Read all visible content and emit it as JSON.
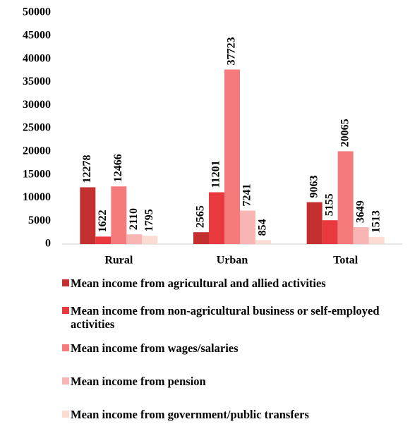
{
  "chart_data": {
    "type": "bar",
    "categories": [
      "Rural",
      "Urban",
      "Total"
    ],
    "series": [
      {
        "name": "Mean income from agricultural and allied activities",
        "color": "#c3302f",
        "values": [
          12278,
          2565,
          9063
        ]
      },
      {
        "name": "Mean income from non-agricultural business or self-employed activities",
        "color": "#e8393f",
        "values": [
          1622,
          11201,
          5155
        ]
      },
      {
        "name": "Mean income from wages/salaries",
        "color": "#f47a7b",
        "values": [
          12466,
          37723,
          20065
        ]
      },
      {
        "name": "Mean income from pension",
        "color": "#f9b4b4",
        "values": [
          2110,
          7241,
          3649
        ]
      },
      {
        "name": "Mean income from government/public transfers",
        "color": "#fbdcd2",
        "values": [
          1795,
          854,
          1513
        ]
      }
    ],
    "ylim": [
      0,
      50000
    ],
    "yticks": [
      0,
      5000,
      10000,
      15000,
      20000,
      25000,
      30000,
      35000,
      40000,
      45000,
      50000
    ],
    "grid": false,
    "legend": "bottom",
    "data_labels": true
  }
}
